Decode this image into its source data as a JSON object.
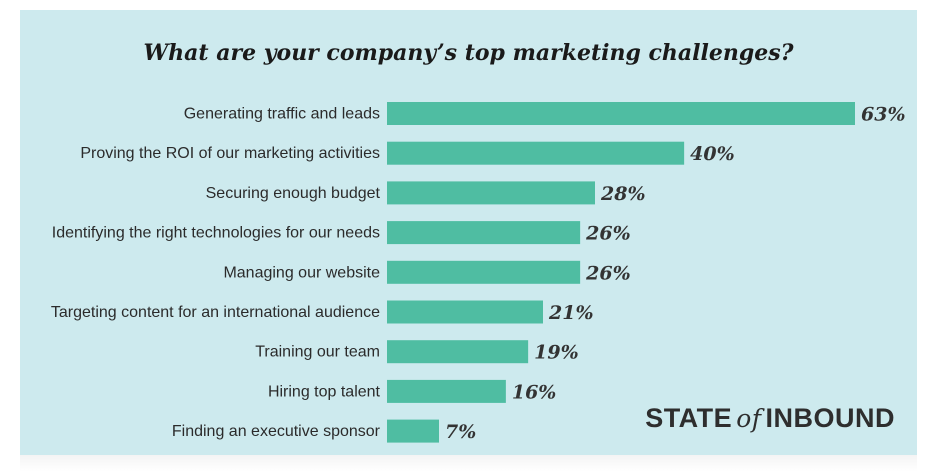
{
  "chart_data": {
    "type": "bar",
    "orientation": "horizontal",
    "title": "What are your company’s top marketing challenges?",
    "categories": [
      "Generating traffic and leads",
      "Proving the ROI of our marketing activities",
      "Securing enough budget",
      "Identifying the right technologies for our needs",
      "Managing our website",
      "Targeting content for an international audience",
      "Training our team",
      "Hiring top talent",
      "Finding an executive sponsor"
    ],
    "values": [
      63,
      40,
      28,
      26,
      26,
      21,
      19,
      16,
      7
    ],
    "value_labels": [
      "63%",
      "40%",
      "28%",
      "26%",
      "26%",
      "21%",
      "19%",
      "16%",
      "7%"
    ],
    "unit": "%",
    "xlim": [
      0,
      63
    ],
    "grid": false,
    "bar_color": "#4fbda2",
    "background_color": "#cdeaee"
  },
  "brand": {
    "state": "STATE",
    "of": "of",
    "inbound": "INBOUND"
  }
}
